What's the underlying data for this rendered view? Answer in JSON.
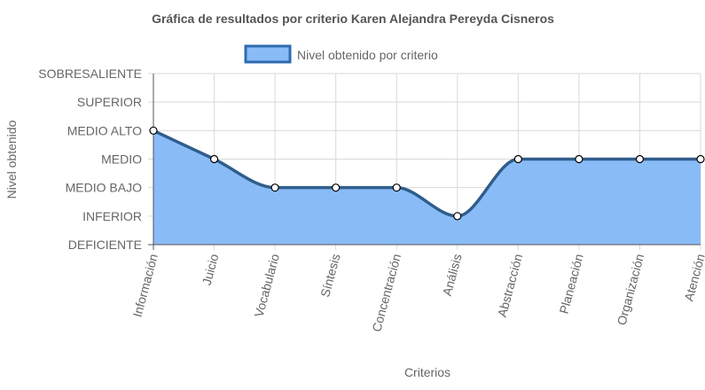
{
  "chart_data": {
    "type": "area",
    "title": "Gráfica de resultados por criterio Karen Alejandra Pereyda Cisneros",
    "xlabel": "Criterios",
    "ylabel": "Nivel obtenido",
    "levels": [
      "DEFICIENTE",
      "INFERIOR",
      "MEDIO BAJO",
      "MEDIO",
      "MEDIO ALTO",
      "SUPERIOR",
      "SOBRESALIENTE"
    ],
    "ylim": [
      0,
      6
    ],
    "categories": [
      "Información",
      "Juicio",
      "Vocabulario",
      "Síntesis",
      "Concentración",
      "Análisis",
      "Abstracción",
      "Planeación",
      "Organización",
      "Atención"
    ],
    "series": [
      {
        "name": "Nivel obtenido por criterio",
        "values": [
          4,
          3,
          2,
          2,
          2,
          1,
          3,
          3,
          3,
          3
        ]
      }
    ],
    "legend_position": "top",
    "grid": true,
    "colors": {
      "fill": "#89bcf7",
      "line": "#305d8c",
      "legend_fill": "#89bcf7",
      "legend_border": "#2e6bb0",
      "grid": "#d9d9d9",
      "axis": "#555555",
      "text": "#666666",
      "title": "#555555"
    }
  }
}
